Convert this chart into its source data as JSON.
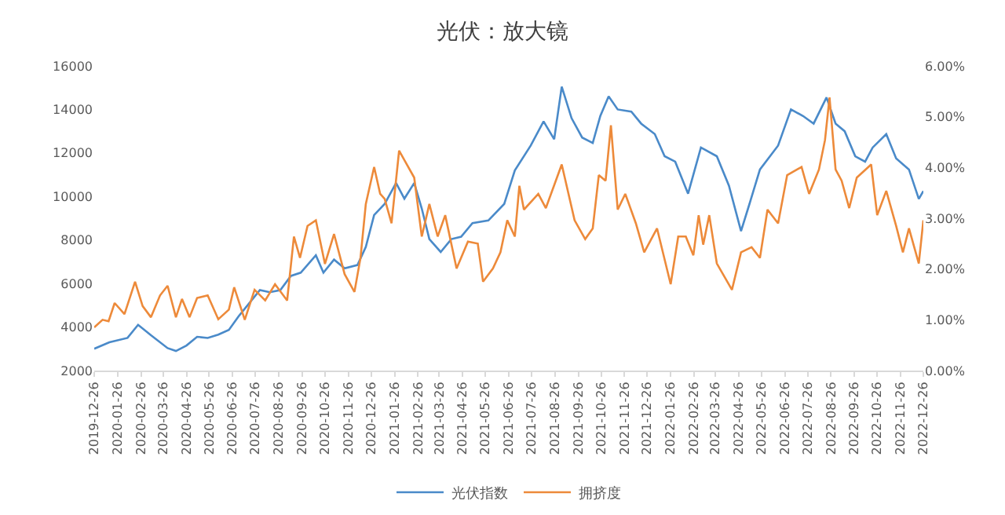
{
  "chart_data": {
    "type": "line",
    "title": "光伏：放大镜",
    "xlim": [
      "2019-12-26",
      "2022-12-26"
    ],
    "xticks": [
      "2019-12-26",
      "2020-01-26",
      "2020-02-26",
      "2020-03-26",
      "2020-04-26",
      "2020-05-26",
      "2020-06-26",
      "2020-07-26",
      "2020-08-26",
      "2020-09-26",
      "2020-10-26",
      "2020-11-26",
      "2020-12-26",
      "2021-01-26",
      "2021-02-26",
      "2021-03-26",
      "2021-04-26",
      "2021-05-26",
      "2021-06-26",
      "2021-07-26",
      "2021-08-26",
      "2021-09-26",
      "2021-10-26",
      "2021-11-26",
      "2021-12-26",
      "2022-01-26",
      "2022-02-26",
      "2022-03-26",
      "2022-04-26",
      "2022-05-26",
      "2022-06-26",
      "2022-07-26",
      "2022-08-26",
      "2022-09-26",
      "2022-10-26",
      "2022-11-26",
      "2022-12-26"
    ],
    "ylim": [
      2000,
      16000
    ],
    "yticks": [
      2000,
      4000,
      6000,
      8000,
      10000,
      12000,
      14000,
      16000
    ],
    "y2lim": [
      0,
      6
    ],
    "y2ticks": [
      {
        "value": 0,
        "label": "0.00%"
      },
      {
        "value": 1,
        "label": "1.00%"
      },
      {
        "value": 2,
        "label": "2.00%"
      },
      {
        "value": 3,
        "label": "3.00%"
      },
      {
        "value": 4,
        "label": "4.00%"
      },
      {
        "value": 5,
        "label": "5.00%"
      },
      {
        "value": 6,
        "label": "6.00%"
      }
    ],
    "legend": "bottom",
    "series": [
      {
        "name": "光伏指数",
        "color": "#4a8ac9",
        "x": [
          "2019-12-26",
          "2020-01-15",
          "2020-02-08",
          "2020-02-22",
          "2020-03-10",
          "2020-04-01",
          "2020-04-12",
          "2020-04-26",
          "2020-05-10",
          "2020-05-24",
          "2020-06-07",
          "2020-06-21",
          "2020-07-04",
          "2020-07-18",
          "2020-08-01",
          "2020-08-14",
          "2020-08-28",
          "2020-09-11",
          "2020-09-24",
          "2020-10-14",
          "2020-10-24",
          "2020-11-07",
          "2020-11-21",
          "2020-12-08",
          "2020-12-19",
          "2020-12-30",
          "2021-01-13",
          "2021-01-28",
          "2021-02-08",
          "2021-02-21",
          "2021-03-03",
          "2021-03-13",
          "2021-03-28",
          "2021-04-11",
          "2021-04-24",
          "2021-05-09",
          "2021-05-30",
          "2021-06-20",
          "2021-07-04",
          "2021-07-25",
          "2021-08-11",
          "2021-08-25",
          "2021-09-04",
          "2021-09-17",
          "2021-10-01",
          "2021-10-15",
          "2021-10-25",
          "2021-11-05",
          "2021-11-17",
          "2021-12-05",
          "2021-12-18",
          "2022-01-05",
          "2022-01-18",
          "2022-02-01",
          "2022-02-18",
          "2022-03-07",
          "2022-03-28",
          "2022-04-13",
          "2022-04-29",
          "2022-05-10",
          "2022-05-24",
          "2022-06-17",
          "2022-07-04",
          "2022-07-20",
          "2022-08-03",
          "2022-08-20",
          "2022-09-01",
          "2022-09-13",
          "2022-09-27",
          "2022-10-10",
          "2022-10-20",
          "2022-11-07",
          "2022-11-20",
          "2022-12-07",
          "2022-12-20",
          "2022-12-26"
        ],
        "values": [
          3000,
          3300,
          3500,
          4100,
          3620,
          3030,
          2900,
          3150,
          3550,
          3500,
          3650,
          3870,
          4500,
          5100,
          5700,
          5600,
          5700,
          6350,
          6500,
          7300,
          6500,
          7100,
          6700,
          6850,
          7680,
          9150,
          9660,
          10620,
          9900,
          10620,
          9440,
          8040,
          7450,
          8040,
          8150,
          8780,
          8900,
          9660,
          11200,
          12340,
          13450,
          12630,
          15050,
          13600,
          12710,
          12460,
          13700,
          14600,
          14000,
          13900,
          13350,
          12870,
          11850,
          11600,
          10130,
          12250,
          11850,
          10500,
          8410,
          9640,
          11240,
          12340,
          14000,
          13700,
          13350,
          14550,
          13350,
          13000,
          11850,
          11600,
          12250,
          12870,
          11750,
          11240,
          9890,
          10250
        ]
      },
      {
        "name": "拥挤度",
        "color": "#ed8a3a",
        "axis": "y2",
        "x": [
          "2019-12-26",
          "2020-01-06",
          "2020-01-14",
          "2020-01-22",
          "2020-02-04",
          "2020-02-18",
          "2020-02-28",
          "2020-03-10",
          "2020-03-22",
          "2020-04-01",
          "2020-04-12",
          "2020-04-20",
          "2020-04-30",
          "2020-05-10",
          "2020-05-24",
          "2020-06-07",
          "2020-06-21",
          "2020-06-28",
          "2020-07-12",
          "2020-07-25",
          "2020-08-08",
          "2020-08-21",
          "2020-09-06",
          "2020-09-15",
          "2020-09-23",
          "2020-10-03",
          "2020-10-14",
          "2020-10-26",
          "2020-11-07",
          "2020-11-21",
          "2020-12-04",
          "2020-12-12",
          "2020-12-19",
          "2020-12-30",
          "2021-01-07",
          "2021-01-13",
          "2021-01-22",
          "2021-02-01",
          "2021-02-09",
          "2021-02-21",
          "2021-03-03",
          "2021-03-13",
          "2021-03-24",
          "2021-04-03",
          "2021-04-18",
          "2021-05-03",
          "2021-05-16",
          "2021-05-23",
          "2021-06-05",
          "2021-06-15",
          "2021-06-24",
          "2021-07-04",
          "2021-07-10",
          "2021-07-16",
          "2021-08-04",
          "2021-08-14",
          "2021-09-04",
          "2021-09-21",
          "2021-10-05",
          "2021-10-15",
          "2021-10-23",
          "2021-11-01",
          "2021-11-08",
          "2021-11-17",
          "2021-11-27",
          "2021-12-11",
          "2021-12-22",
          "2022-01-08",
          "2022-01-26",
          "2022-02-05",
          "2022-02-15",
          "2022-02-25",
          "2022-03-04",
          "2022-03-10",
          "2022-03-18",
          "2022-03-28",
          "2022-04-17",
          "2022-04-29",
          "2022-05-13",
          "2022-05-24",
          "2022-06-03",
          "2022-06-17",
          "2022-06-29",
          "2022-07-18",
          "2022-07-28",
          "2022-08-10",
          "2022-08-18",
          "2022-08-24",
          "2022-09-01",
          "2022-09-09",
          "2022-09-19",
          "2022-09-29",
          "2022-10-18",
          "2022-10-26",
          "2022-11-07",
          "2022-11-20",
          "2022-11-29",
          "2022-12-07",
          "2022-12-20",
          "2022-12-26"
        ],
        "values": [
          0.85,
          1.0,
          0.97,
          1.33,
          1.11,
          1.75,
          1.27,
          1.05,
          1.48,
          1.67,
          1.05,
          1.41,
          1.05,
          1.43,
          1.48,
          1.01,
          1.2,
          1.64,
          1.0,
          1.59,
          1.38,
          1.7,
          1.38,
          2.64,
          2.22,
          2.85,
          2.96,
          2.1,
          2.69,
          1.9,
          1.55,
          2.22,
          3.28,
          4.01,
          3.48,
          3.38,
          2.9,
          4.33,
          4.12,
          3.8,
          2.64,
          3.28,
          2.64,
          3.06,
          2.01,
          2.54,
          2.5,
          1.75,
          2.01,
          2.33,
          2.96,
          2.64,
          3.64,
          3.17,
          3.48,
          3.2,
          4.06,
          2.96,
          2.59,
          2.8,
          3.85,
          3.74,
          4.83,
          3.17,
          3.48,
          2.9,
          2.33,
          2.8,
          1.7,
          2.64,
          2.64,
          2.27,
          3.06,
          2.48,
          3.06,
          2.11,
          1.59,
          2.33,
          2.43,
          2.22,
          3.17,
          2.9,
          3.85,
          4.01,
          3.48,
          3.96,
          4.54,
          5.38,
          3.96,
          3.74,
          3.2,
          3.8,
          4.06,
          3.06,
          3.54,
          2.85,
          2.33,
          2.8,
          2.11,
          2.96
        ]
      }
    ]
  }
}
